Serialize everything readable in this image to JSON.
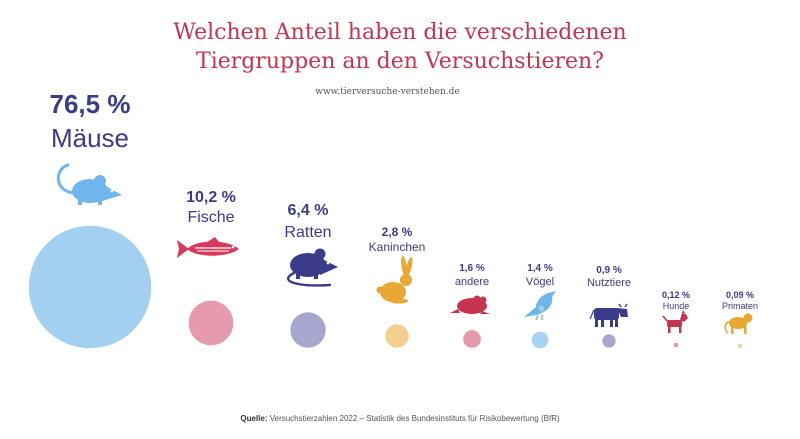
{
  "header": {
    "title_line1": "Welchen Anteil haben die verschiedenen",
    "title_line2": "Tiergruppen an den Versuchstieren?",
    "url": "www.tierversuche-verstehen.de"
  },
  "footer": {
    "source_label": "Quelle:",
    "source_text": "Versuchstierzahlen 2022 – Statistik des Bundesinstituts für Risikobewertung (BfR)"
  },
  "colors": {
    "title": "#c7344f",
    "label": "#3b3b8a"
  },
  "chart_data": {
    "type": "bubble",
    "title": "Welchen Anteil haben die verschiedenen Tiergruppen an den Versuchstieren?",
    "unit": "%",
    "categories": [
      "Mäuse",
      "Fische",
      "Ratten",
      "Kaninchen",
      "andere",
      "Vögel",
      "Nutztiere",
      "Hunde",
      "Primaten"
    ],
    "values": [
      76.5,
      10.2,
      6.4,
      2.8,
      1.6,
      1.4,
      0.9,
      0.12,
      0.09
    ],
    "value_labels": [
      "76,5 %",
      "10,2 %",
      "6,4 %",
      "2,8 %",
      "1,6 %",
      "1,4 %",
      "0,9 %",
      "0,12 %",
      "0,09 %"
    ],
    "icons": [
      "mouse-icon",
      "fish-icon",
      "rat-icon",
      "rabbit-icon",
      "frog-icon",
      "bird-icon",
      "cow-icon",
      "dog-icon",
      "monkey-icon"
    ],
    "colors": [
      "#a3cff0",
      "#e59bad",
      "#a6a6cf",
      "#f5cf8f",
      "#e59bad",
      "#a3d4f5",
      "#a6a6cf",
      "#e59bad",
      "#f5cf8f"
    ],
    "icon_colors": [
      "#6fb6ec",
      "#d83a5b",
      "#3b3b8a",
      "#e8a832",
      "#c7344f",
      "#6fb6ec",
      "#3b3b8a",
      "#c7344f",
      "#e8a832"
    ]
  }
}
